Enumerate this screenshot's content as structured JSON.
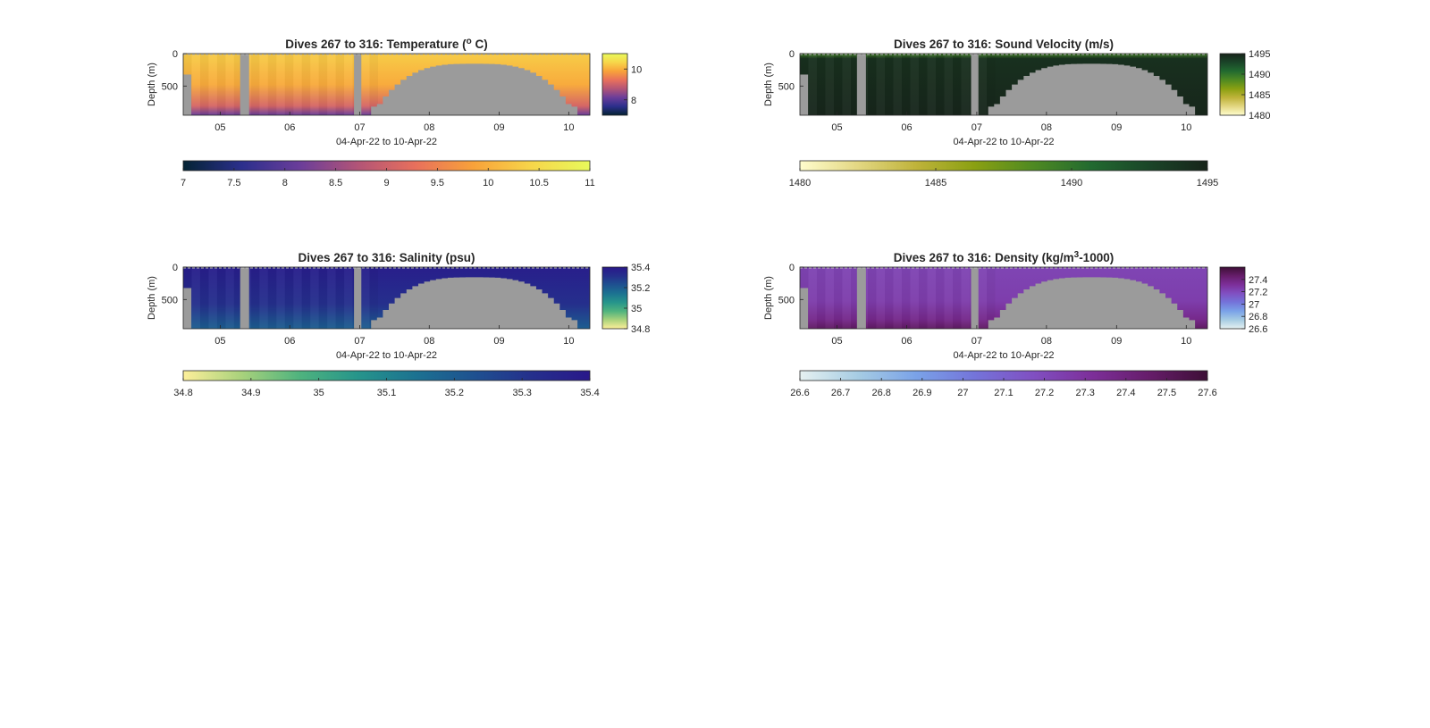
{
  "chart_data": [
    {
      "type": "heatmap",
      "variable": "temperature",
      "title_main": "Dives 267 to 316: Temperature (",
      "title_sup": "o",
      "title_end": " C)",
      "xlabel": "04-Apr-22 to 10-Apr-22",
      "ylabel": "Depth (m)",
      "x_range": [
        "04-Apr-22",
        "10-Apr-22"
      ],
      "x_ticks": [
        "05",
        "06",
        "07",
        "08",
        "09",
        "10"
      ],
      "y_ticks": [
        "0",
        "500"
      ],
      "y_range": [
        0,
        950
      ],
      "y_reversed": true,
      "colormap": "thermal",
      "colormap_stops": [
        "#042333",
        "#2b2f8c",
        "#6a3d9a",
        "#b25477",
        "#e8705c",
        "#f8a23a",
        "#f7d64a",
        "#e8fa5b"
      ],
      "clim": [
        7,
        11
      ],
      "right_colorbar_ticks": [
        "10",
        "8"
      ],
      "bottom_colorbar_ticks": [
        "7",
        "7.5",
        "8",
        "8.5",
        "9",
        "9.5",
        "10",
        "10.5",
        "11"
      ],
      "no_data_color": "#9b9b9b"
    },
    {
      "type": "heatmap",
      "variable": "sound_velocity",
      "title_main": "Dives 267 to 316: Sound Velocity (m/s)",
      "title_sup": "",
      "title_end": "",
      "xlabel": "04-Apr-22 to 10-Apr-22",
      "ylabel": "Depth (m)",
      "x_range": [
        "04-Apr-22",
        "10-Apr-22"
      ],
      "x_ticks": [
        "05",
        "06",
        "07",
        "08",
        "09",
        "10"
      ],
      "y_ticks": [
        "0",
        "500"
      ],
      "y_range": [
        0,
        950
      ],
      "y_reversed": true,
      "colormap": "speed",
      "colormap_stops": [
        "#fffdcd",
        "#e3d782",
        "#bfb33a",
        "#8aa012",
        "#4f8a22",
        "#226a30",
        "#1a4528",
        "#17241a"
      ],
      "clim": [
        1480,
        1495
      ],
      "right_colorbar_ticks": [
        "1495",
        "1490",
        "1485",
        "1480"
      ],
      "bottom_colorbar_ticks": [
        "1480",
        "1485",
        "1490",
        "1495"
      ],
      "no_data_color": "#9b9b9b"
    },
    {
      "type": "heatmap",
      "variable": "salinity",
      "title_main": "Dives 267 to 316: Salinity (psu)",
      "title_sup": "",
      "title_end": "",
      "xlabel": "04-Apr-22 to 10-Apr-22",
      "ylabel": "Depth (m)",
      "x_range": [
        "04-Apr-22",
        "10-Apr-22"
      ],
      "x_ticks": [
        "05",
        "06",
        "07",
        "08",
        "09",
        "10"
      ],
      "y_ticks": [
        "0",
        "500"
      ],
      "y_range": [
        0,
        950
      ],
      "y_reversed": true,
      "colormap": "haline-reversed",
      "colormap_stops": [
        "#fdef9a",
        "#a9d27c",
        "#4fb37e",
        "#26958b",
        "#1c7291",
        "#1e5190",
        "#252f8c",
        "#29188a"
      ],
      "clim": [
        34.8,
        35.4
      ],
      "right_colorbar_ticks": [
        "35.4",
        "35.2",
        "35",
        "34.8"
      ],
      "bottom_colorbar_ticks": [
        "34.8",
        "34.9",
        "35",
        "35.1",
        "35.2",
        "35.3",
        "35.4"
      ],
      "no_data_color": "#9b9b9b"
    },
    {
      "type": "heatmap",
      "variable": "density",
      "title_main": "Dives 267 to 316: Density (kg/m",
      "title_sup": "3",
      "title_end": "-1000)",
      "xlabel": "04-Apr-22 to 10-Apr-22",
      "ylabel": "Depth (m)",
      "x_range": [
        "04-Apr-22",
        "10-Apr-22"
      ],
      "x_ticks": [
        "05",
        "06",
        "07",
        "08",
        "09",
        "10"
      ],
      "y_ticks": [
        "0",
        "500"
      ],
      "y_range": [
        0,
        950
      ],
      "y_reversed": true,
      "colormap": "dense",
      "colormap_stops": [
        "#e6f1f1",
        "#a6cce3",
        "#7aa2e8",
        "#7474da",
        "#8050c2",
        "#7d2f9a",
        "#661d6a",
        "#3d0f36"
      ],
      "clim": [
        26.6,
        27.6
      ],
      "right_colorbar_ticks": [
        "27.4",
        "27.2",
        "27",
        "26.8",
        "26.6"
      ],
      "bottom_colorbar_ticks": [
        "26.6",
        "26.7",
        "26.8",
        "26.9",
        "27",
        "27.1",
        "27.2",
        "27.3",
        "27.4",
        "27.5",
        "27.6"
      ],
      "no_data_color": "#9b9b9b"
    }
  ]
}
